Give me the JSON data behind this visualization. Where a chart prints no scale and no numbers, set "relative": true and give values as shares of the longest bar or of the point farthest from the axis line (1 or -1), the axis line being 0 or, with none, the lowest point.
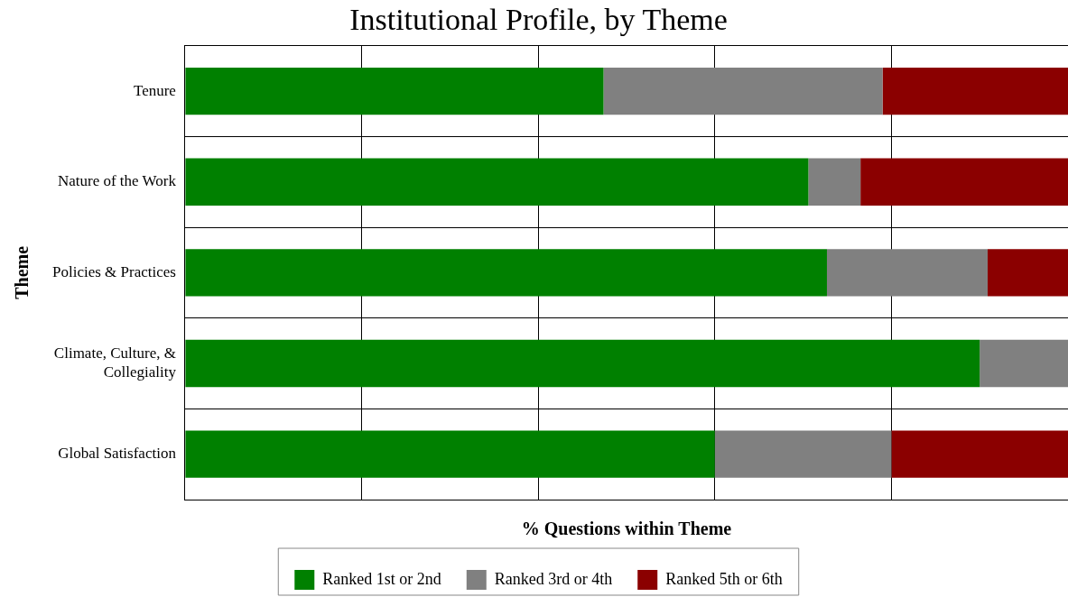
{
  "chart_data": {
    "type": "bar",
    "orientation": "horizontal",
    "stacked": true,
    "relative": true,
    "title": "Institutional Profile, by Theme",
    "xlabel": "% Questions within Theme",
    "ylabel": "Theme",
    "categories": [
      "Tenure",
      "Nature of the Work",
      "Policies & Practices",
      "Climate, Culture, & Collegiality",
      "Global Satisfaction"
    ],
    "series": [
      {
        "name": "Ranked 1st or 2nd",
        "color": "#008000",
        "values": [
          0.474,
          0.706,
          0.727,
          0.9,
          0.6
        ]
      },
      {
        "name": "Ranked 3rd or 4th",
        "color": "#808080",
        "values": [
          0.316,
          0.059,
          0.182,
          0.1,
          0.2
        ]
      },
      {
        "name": "Ranked 5th or 6th",
        "color": "#8b0000",
        "values": [
          0.21,
          0.235,
          0.091,
          0,
          0.2
        ]
      }
    ],
    "grid": true,
    "legend": "bottom"
  }
}
